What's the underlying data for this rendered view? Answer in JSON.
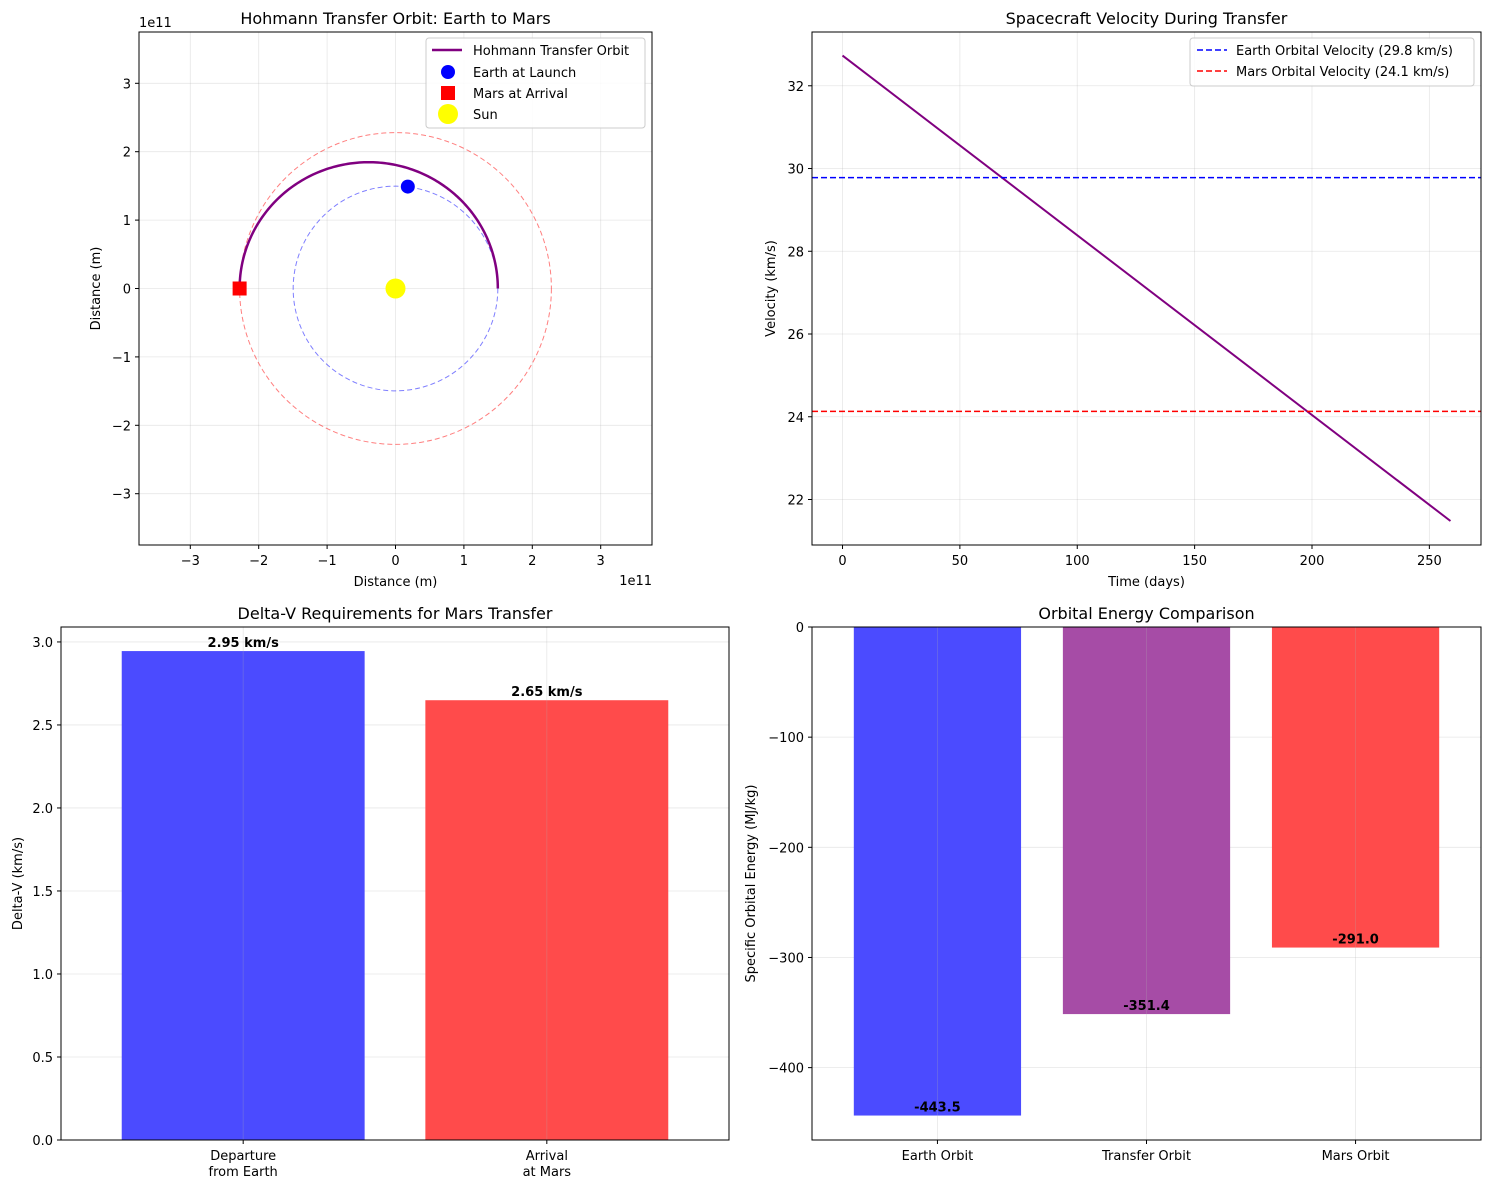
{
  "chart_data": [
    {
      "type": "line",
      "title": "Hohmann Transfer Orbit: Earth to Mars",
      "xlabel": "Distance (m)",
      "ylabel": "Distance (m)",
      "offset_text_x": "1e11",
      "offset_text_y": "1e11",
      "xlim": [
        -3.75,
        3.75
      ],
      "ylim": [
        -3.75,
        3.75
      ],
      "ticks": [
        -3,
        -2,
        -1,
        0,
        1,
        2,
        3
      ],
      "tick_labels": [
        "−3",
        "−2",
        "−1",
        "0",
        "1",
        "2",
        "3"
      ],
      "grid": true,
      "legend_position": "top-right",
      "earth_orbit_radius": 1.496,
      "mars_orbit_radius": 2.279,
      "transfer": {
        "name": "Hohmann Transfer Orbit",
        "color": "#800080",
        "from_deg": 0,
        "to_deg": 180
      },
      "points": [
        {
          "name": "Earth at Launch",
          "x": 0.18,
          "y": 1.49,
          "color": "#0000ff",
          "marker": "circle"
        },
        {
          "name": "Mars at Arrival",
          "x": -2.279,
          "y": 0.0,
          "color": "#ff0000",
          "marker": "square"
        },
        {
          "name": "Sun",
          "x": 0.0,
          "y": 0.0,
          "color": "#ffff00",
          "marker": "circle"
        }
      ],
      "orbit_colors": {
        "earth": "#0000ff",
        "mars": "#ff0000"
      }
    },
    {
      "type": "line",
      "title": "Spacecraft Velocity During Transfer",
      "xlabel": "Time (days)",
      "ylabel": "Velocity (km/s)",
      "xlim": [
        -13,
        272
      ],
      "ylim": [
        20.9,
        33.3
      ],
      "xticks": [
        0,
        50,
        100,
        150,
        200,
        250
      ],
      "xtick_labels": [
        "0",
        "50",
        "100",
        "150",
        "200",
        "250"
      ],
      "yticks": [
        22,
        24,
        26,
        28,
        30,
        32
      ],
      "ytick_labels": [
        "22",
        "24",
        "26",
        "28",
        "30",
        "32"
      ],
      "grid": true,
      "legend_position": "top-right",
      "series": [
        {
          "x": [
            0,
            259
          ],
          "values": [
            32.73,
            21.48
          ],
          "color": "#800080",
          "style": "solid"
        }
      ],
      "hlines": [
        {
          "name": "Earth Orbital Velocity (29.8 km/s)",
          "y": 29.78,
          "color": "#0000ff"
        },
        {
          "name": "Mars Orbital Velocity (24.1 km/s)",
          "y": 24.13,
          "color": "#ff0000"
        }
      ]
    },
    {
      "type": "bar",
      "title": "Delta-V Requirements for Mars Transfer",
      "xlabel": "",
      "ylabel": "Delta-V (km/s)",
      "categories": [
        [
          "Departure",
          "from Earth"
        ],
        [
          "Arrival",
          "at Mars"
        ]
      ],
      "values": [
        2.945,
        2.649
      ],
      "value_labels": [
        "2.95 km/s",
        "2.65 km/s"
      ],
      "colors": [
        "#4b4bff",
        "#ff4b4b"
      ],
      "ylim": [
        0,
        3.09
      ],
      "yticks": [
        0,
        0.5,
        1,
        1.5,
        2,
        2.5,
        3
      ],
      "ytick_labels": [
        "0.0",
        "0.5",
        "1.0",
        "1.5",
        "2.0",
        "2.5",
        "3.0"
      ],
      "grid": true
    },
    {
      "type": "bar",
      "title": "Orbital Energy Comparison",
      "xlabel": "",
      "ylabel": "Specific Orbital Energy (MJ/kg)",
      "categories": [
        "Earth Orbit",
        "Transfer Orbit",
        "Mars Orbit"
      ],
      "values": [
        -443.5,
        -351.4,
        -291.0
      ],
      "value_labels": [
        "-443.5",
        "-351.4",
        "-291.0"
      ],
      "colors": [
        "#4b4bff",
        "#a64ca6",
        "#ff4b4b"
      ],
      "ylim": [
        -465.7,
        0
      ],
      "yticks": [
        0,
        -100,
        -200,
        -300,
        -400
      ],
      "ytick_labels": [
        "0",
        "−100",
        "−200",
        "−300",
        "−400"
      ],
      "grid": true
    }
  ]
}
